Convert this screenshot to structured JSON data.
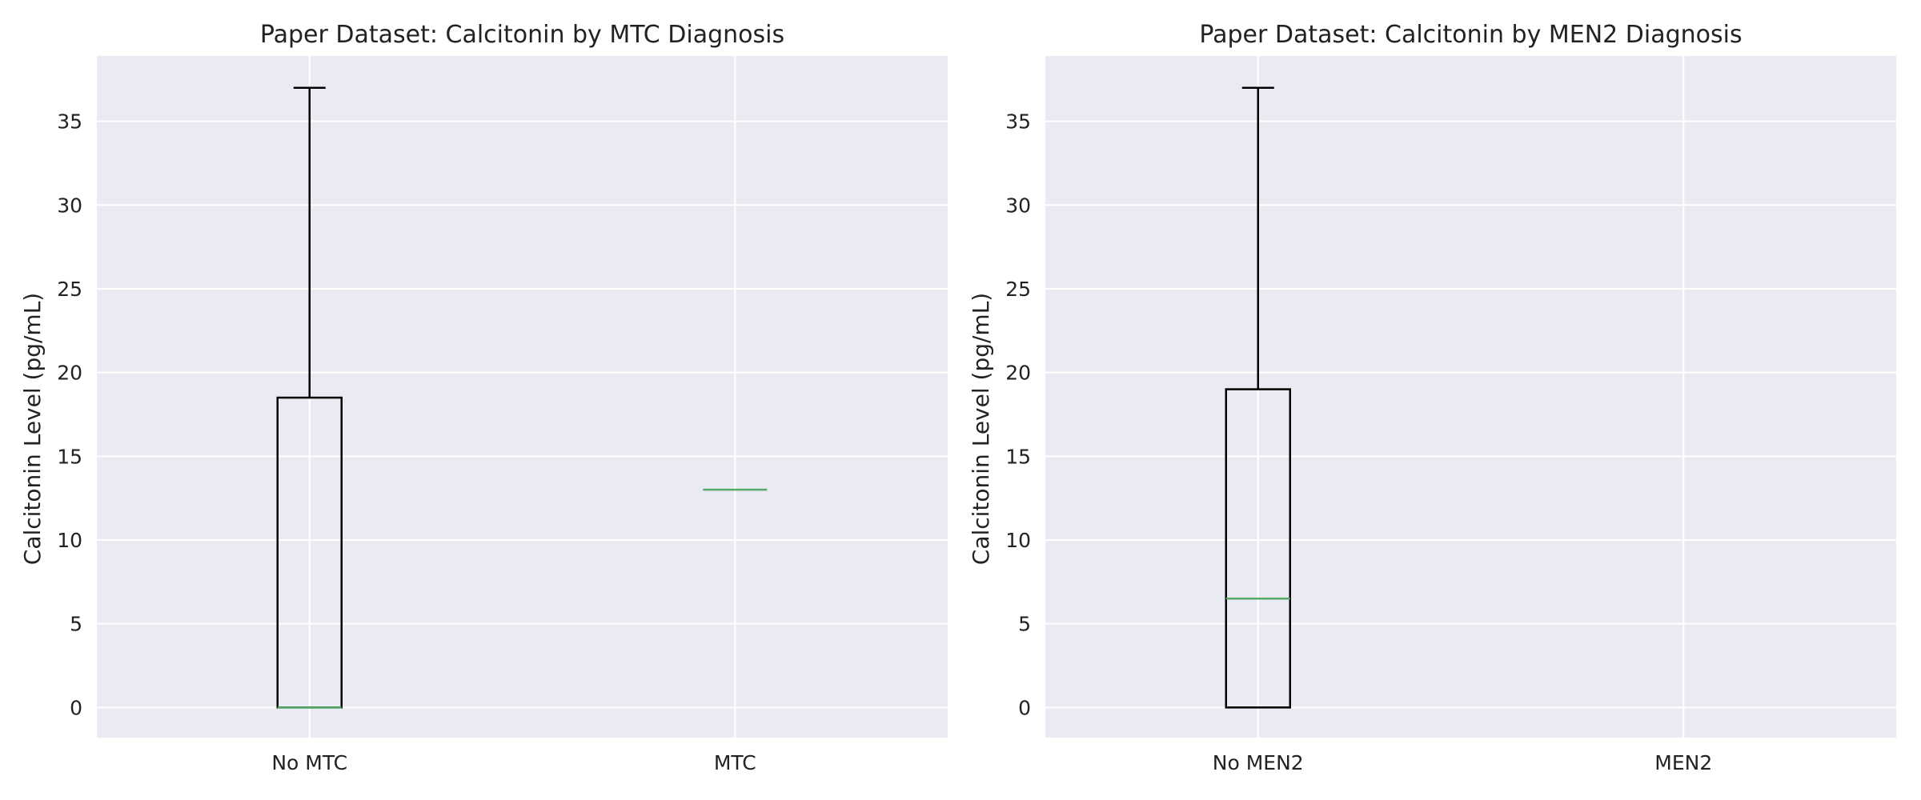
{
  "chart_data": [
    {
      "type": "box",
      "title": "Paper Dataset: Calcitonin by MTC Diagnosis",
      "xlabel": "",
      "ylabel": "Calcitonin Level (pg/mL)",
      "ylim": [
        -1.8,
        38.9
      ],
      "yticks": [
        "0",
        "5",
        "10",
        "15",
        "20",
        "25",
        "30",
        "35"
      ],
      "grid": true,
      "categories": [
        "No MTC",
        "MTC"
      ],
      "boxes": [
        {
          "category": "No MTC",
          "whisker_low": 0,
          "q1": 0,
          "median": 0,
          "q3": 18.5,
          "whisker_high": 37
        },
        {
          "category": "MTC",
          "whisker_low": 13,
          "q1": 13,
          "median": 13,
          "q3": 13,
          "whisker_high": 13
        }
      ]
    },
    {
      "type": "box",
      "title": "Paper Dataset: Calcitonin by MEN2 Diagnosis",
      "xlabel": "",
      "ylabel": "Calcitonin Level (pg/mL)",
      "ylim": [
        -1.8,
        38.9
      ],
      "yticks": [
        "0",
        "5",
        "10",
        "15",
        "20",
        "25",
        "30",
        "35"
      ],
      "grid": true,
      "categories": [
        "No MEN2",
        "MEN2"
      ],
      "boxes": [
        {
          "category": "No MEN2",
          "whisker_low": 0,
          "q1": 0,
          "median": 6.5,
          "q3": 19,
          "whisker_high": 37
        },
        {
          "category": "MEN2",
          "whisker_low": null,
          "q1": null,
          "median": null,
          "q3": null,
          "whisker_high": null
        }
      ]
    }
  ],
  "colors": {
    "plot_background": "#EAEAF2",
    "grid": "#FFFFFF",
    "box": "#000000",
    "median": "#55A868",
    "text": "#222222"
  }
}
